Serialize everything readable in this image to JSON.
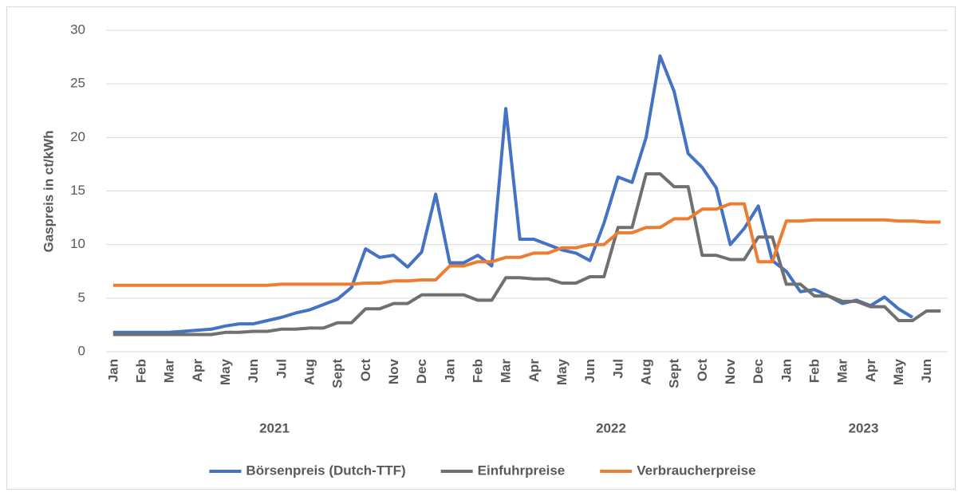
{
  "chart_data": {
    "type": "line",
    "y_label": "Gaspreis in ct/kWh",
    "categories": [
      "Jan",
      null,
      "Feb",
      null,
      "Mar",
      null,
      "Apr",
      null,
      "May",
      null,
      "Jun",
      null,
      "Jul",
      null,
      "Aug",
      null,
      "Sept",
      null,
      "Oct",
      null,
      "Nov",
      null,
      "Dec",
      null,
      "Jan",
      null,
      "Feb",
      null,
      "Mar",
      null,
      "Apr",
      null,
      "May",
      null,
      "Jun",
      null,
      "Jul",
      null,
      "Aug",
      null,
      "Sept",
      null,
      "Oct",
      null,
      "Nov",
      null,
      "Dec",
      null,
      "Jan",
      null,
      "Feb",
      null,
      "Mar",
      null,
      "Apr",
      null,
      "May",
      null,
      "Jun",
      null
    ],
    "category_groups": [
      {
        "label": "2021",
        "count": 24
      },
      {
        "label": "2022",
        "count": 24
      },
      {
        "label": "2023",
        "count": 12
      }
    ],
    "series": [
      {
        "name": "Börsenpreis (Dutch-TTF)",
        "color": "#4472c4",
        "values": [
          1.8,
          1.8,
          1.8,
          1.8,
          1.8,
          1.9,
          2.0,
          2.1,
          2.4,
          2.6,
          2.6,
          2.9,
          3.2,
          3.6,
          3.9,
          4.4,
          4.9,
          6.0,
          9.6,
          8.8,
          9.0,
          7.9,
          9.3,
          14.7,
          8.3,
          8.3,
          9.0,
          8.0,
          22.7,
          10.5,
          10.5,
          10.0,
          9.5,
          9.2,
          8.5,
          12.0,
          16.3,
          15.8,
          20.0,
          27.6,
          24.3,
          18.5,
          17.2,
          15.3,
          10.0,
          11.5,
          13.6,
          8.5,
          7.5,
          5.6,
          5.8,
          5.2,
          4.5,
          4.8,
          4.3,
          5.1,
          4.0,
          3.2,
          null,
          null
        ]
      },
      {
        "name": "Einfuhrpreise",
        "color": "#707070",
        "values": [
          1.6,
          1.6,
          1.6,
          1.6,
          1.6,
          1.6,
          1.6,
          1.6,
          1.8,
          1.8,
          1.9,
          1.9,
          2.1,
          2.1,
          2.2,
          2.2,
          2.7,
          2.7,
          4.0,
          4.0,
          4.5,
          4.5,
          5.3,
          5.3,
          5.3,
          5.3,
          4.8,
          4.8,
          6.9,
          6.9,
          6.8,
          6.8,
          6.4,
          6.4,
          7.0,
          7.0,
          11.6,
          11.6,
          16.6,
          16.6,
          15.4,
          15.4,
          9.0,
          9.0,
          8.6,
          8.6,
          10.7,
          10.7,
          6.3,
          6.3,
          5.2,
          5.2,
          4.7,
          4.7,
          4.2,
          4.2,
          2.9,
          2.9,
          3.8,
          3.8
        ]
      },
      {
        "name": "Verbraucherpreise",
        "color": "#ed7d31",
        "values": [
          6.2,
          6.2,
          6.2,
          6.2,
          6.2,
          6.2,
          6.2,
          6.2,
          6.2,
          6.2,
          6.2,
          6.2,
          6.3,
          6.3,
          6.3,
          6.3,
          6.3,
          6.3,
          6.4,
          6.4,
          6.6,
          6.6,
          6.7,
          6.7,
          8.0,
          8.0,
          8.4,
          8.4,
          8.8,
          8.8,
          9.2,
          9.2,
          9.7,
          9.7,
          10.0,
          10.0,
          11.1,
          11.1,
          11.6,
          11.6,
          12.4,
          12.4,
          13.3,
          13.3,
          13.8,
          13.8,
          8.4,
          8.4,
          12.2,
          12.2,
          12.3,
          12.3,
          12.3,
          12.3,
          12.3,
          12.3,
          12.2,
          12.2,
          12.1,
          12.1
        ]
      }
    ],
    "ylim": [
      0,
      30
    ],
    "yticks": [
      0,
      5,
      10,
      15,
      20,
      25,
      30
    ],
    "grid": true,
    "legend": "bottom"
  }
}
